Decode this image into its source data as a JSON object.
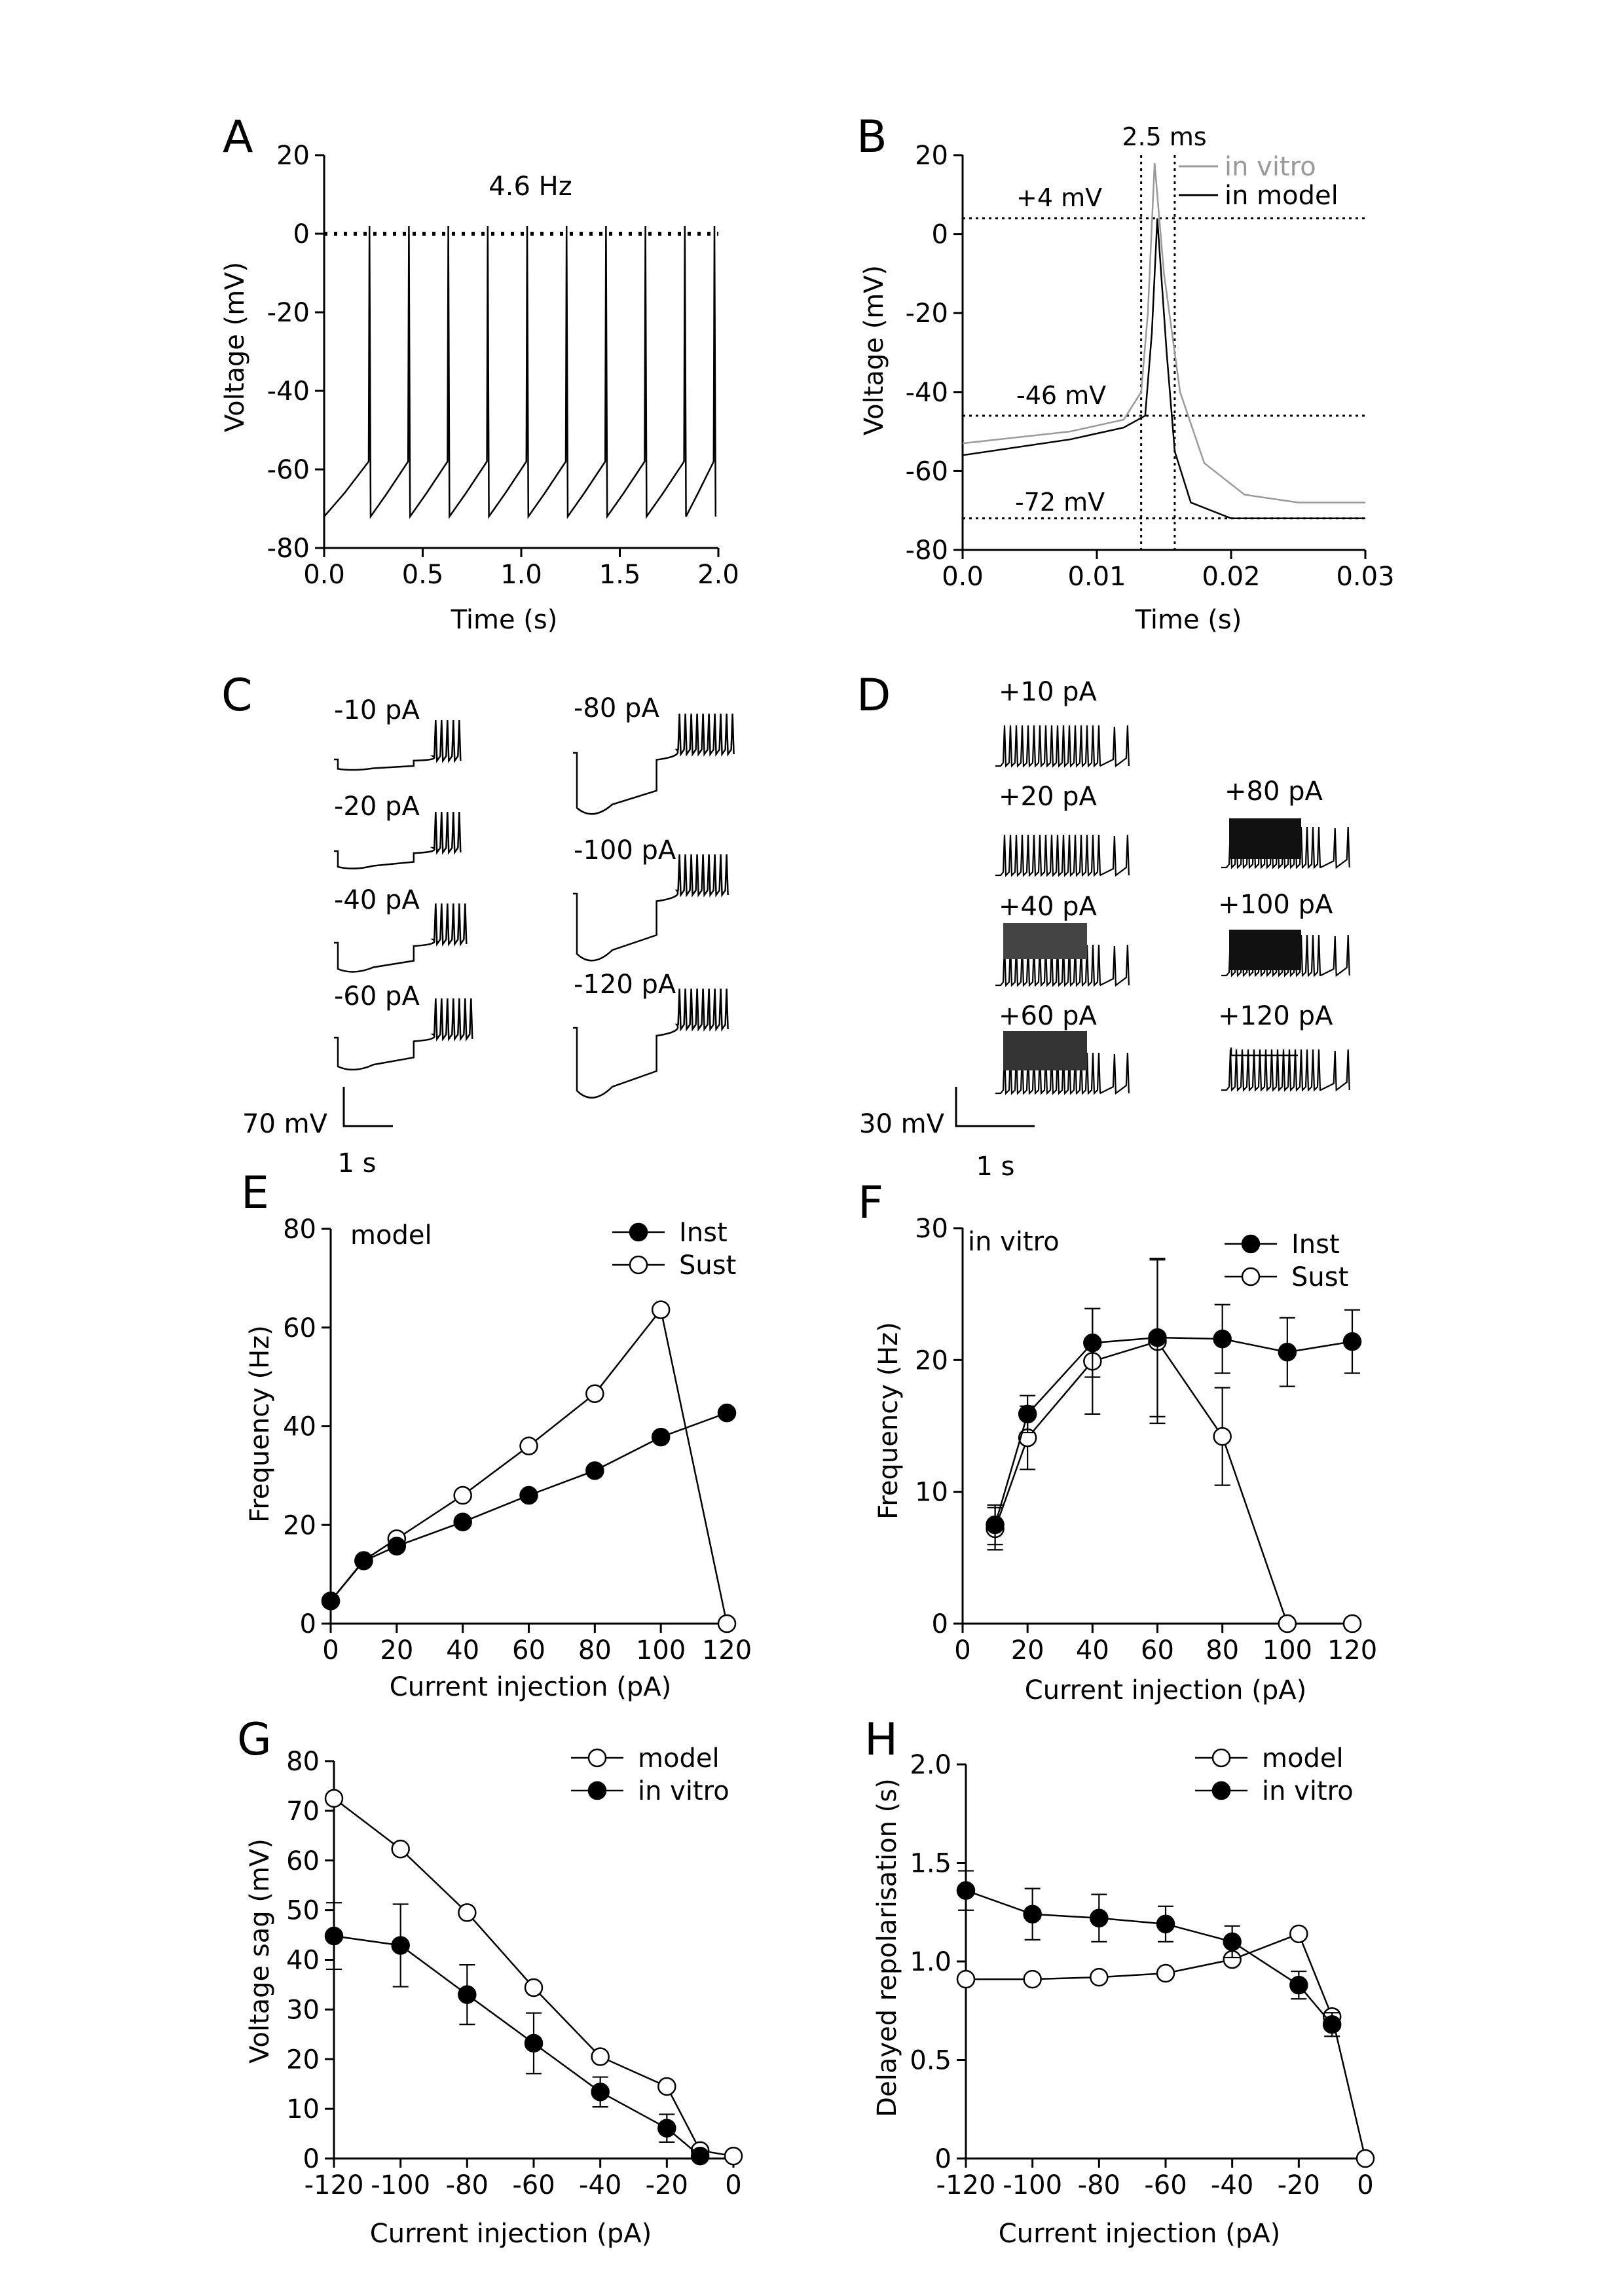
{
  "panels": {
    "A": {
      "letter": "A",
      "title": "4.6 Hz",
      "xlabel": "Time (s)",
      "ylabel": "Voltage (mV)",
      "xticks": [
        "0.0",
        "0.5",
        "1.0",
        "1.5",
        "2.0"
      ],
      "yticks": [
        "20",
        "0",
        "-20",
        "-40",
        "-60",
        "-80"
      ]
    },
    "B": {
      "letter": "B",
      "xlabel": "Time (s)",
      "ylabel": "Voltage (mV)",
      "xticks": [
        "0.0",
        "0.01",
        "0.02",
        "0.03"
      ],
      "yticks": [
        "20",
        "0",
        "-20",
        "-40",
        "-60",
        "-80"
      ],
      "annotations": {
        "width": "2.5 ms",
        "peak": "+4 mV",
        "threshold": "-46 mV",
        "ahp": "-72 mV"
      },
      "legend": [
        {
          "name": "in vitro",
          "color": "#9a9a9a"
        },
        {
          "name": "in model",
          "color": "#000000"
        }
      ]
    },
    "C": {
      "letter": "C",
      "traces": [
        "-10 pA",
        "-20 pA",
        "-40 pA",
        "-60 pA",
        "-80 pA",
        "-100 pA",
        "-120 pA"
      ],
      "scalebar": {
        "v": "70 mV",
        "t": "1 s"
      }
    },
    "D": {
      "letter": "D",
      "traces": [
        "+10 pA",
        "+20 pA",
        "+40 pA",
        "+60 pA",
        "+80 pA",
        "+100 pA",
        "+120 pA"
      ],
      "scalebar": {
        "v": "30 mV",
        "t": "1 s"
      }
    },
    "E": {
      "letter": "E",
      "note": "model",
      "xlabel": "Current injection (pA)",
      "ylabel": "Frequency (Hz)",
      "legend": [
        "Inst",
        "Sust"
      ]
    },
    "F": {
      "letter": "F",
      "note": "in vitro",
      "xlabel": "Current injection (pA)",
      "ylabel": "Frequency (Hz)",
      "legend": [
        "Inst",
        "Sust"
      ]
    },
    "G": {
      "letter": "G",
      "xlabel": "Current injection (pA)",
      "ylabel": "Voltage sag (mV)",
      "legend": [
        "model",
        "in vitro"
      ]
    },
    "H": {
      "letter": "H",
      "xlabel": "Current injection (pA)",
      "ylabel": "Delayed repolarisation (s)",
      "legend": [
        "model",
        "in vitro"
      ]
    }
  },
  "chart_data": [
    {
      "panel": "A",
      "type": "line",
      "xlim": [
        0,
        2.0
      ],
      "ylim": [
        -80,
        20
      ],
      "series": [
        {
          "spike_times": [
            0.23,
            0.43,
            0.63,
            0.83,
            1.03,
            1.23,
            1.43,
            1.63,
            1.83,
            1.98
          ],
          "spike_peak": 2,
          "rest": -72,
          "trough": -72,
          "reference_line": 0
        }
      ]
    },
    {
      "panel": "B",
      "type": "line",
      "xlim": [
        0,
        0.03
      ],
      "ylim": [
        -80,
        20
      ],
      "series": [
        {
          "name": "in vitro",
          "peak_time": 0.0143,
          "peak": 18,
          "threshold": -46,
          "after": -68
        },
        {
          "name": "in model",
          "peak_time": 0.0145,
          "peak": 4,
          "threshold": -46,
          "after": -72
        }
      ],
      "guides": {
        "h": [
          4,
          -46,
          -72
        ],
        "v": [
          0.0133,
          0.0158
        ]
      }
    },
    {
      "panel": "E",
      "type": "line",
      "xlim": [
        0,
        120
      ],
      "ylim": [
        0,
        80
      ],
      "xticks": [
        "0",
        "20",
        "40",
        "60",
        "80",
        "100",
        "120"
      ],
      "yticks": [
        "0",
        "20",
        "40",
        "60",
        "80"
      ],
      "series": [
        {
          "name": "Inst",
          "x": [
            0,
            10,
            20,
            40,
            60,
            80,
            100,
            120
          ],
          "y": [
            4.6,
            12.7,
            15.7,
            20.6,
            26,
            31,
            37.8,
            42.7
          ]
        },
        {
          "name": "Sust",
          "x": [
            0,
            10,
            20,
            40,
            60,
            80,
            100,
            120
          ],
          "y": [
            4.6,
            12.8,
            17.2,
            26,
            36,
            46.6,
            63.6,
            0
          ]
        }
      ]
    },
    {
      "panel": "F",
      "type": "line",
      "xlim": [
        0,
        120
      ],
      "ylim": [
        0,
        30
      ],
      "xticks": [
        "0",
        "20",
        "40",
        "60",
        "80",
        "100",
        "120"
      ],
      "yticks": [
        "0",
        "10",
        "20",
        "30"
      ],
      "series": [
        {
          "name": "Inst",
          "x": [
            10,
            20,
            40,
            60,
            80,
            100,
            120
          ],
          "y": [
            7.5,
            15.9,
            21.3,
            21.7,
            21.6,
            20.6,
            21.4
          ],
          "err": [
            1.5,
            1.4,
            2.6,
            6.0,
            2.6,
            2.6,
            2.4
          ]
        },
        {
          "name": "Sust",
          "x": [
            10,
            20,
            40,
            60,
            80,
            100,
            120
          ],
          "y": [
            7.2,
            14.1,
            19.9,
            21.4,
            14.2,
            0,
            0
          ],
          "err": [
            1.6,
            2.4,
            4.0,
            6.2,
            3.7,
            0,
            0
          ]
        }
      ]
    },
    {
      "panel": "G",
      "type": "line",
      "xlim": [
        -120,
        0
      ],
      "ylim": [
        0,
        80
      ],
      "xticks": [
        "-120",
        "-100",
        "-80",
        "-60",
        "-40",
        "-20",
        "0"
      ],
      "yticks": [
        "0",
        "10",
        "20",
        "30",
        "40",
        "50",
        "60",
        "70",
        "80"
      ],
      "series": [
        {
          "name": "model",
          "x": [
            -120,
            -100,
            -80,
            -60,
            -40,
            -20,
            -10,
            0
          ],
          "y": [
            72.5,
            62.3,
            49.5,
            34.4,
            20.5,
            14.5,
            1.6,
            0.5
          ]
        },
        {
          "name": "in vitro",
          "x": [
            -120,
            -100,
            -80,
            -60,
            -40,
            -20,
            -10
          ],
          "y": [
            44.8,
            42.9,
            33.0,
            23.2,
            13.4,
            6.1,
            0.5
          ],
          "err": [
            6.7,
            8.3,
            6.0,
            6.1,
            3.0,
            2.8,
            0.5
          ]
        }
      ]
    },
    {
      "panel": "H",
      "type": "line",
      "xlim": [
        -120,
        0
      ],
      "ylim": [
        0,
        2.0
      ],
      "xticks": [
        "-120",
        "-100",
        "-80",
        "-60",
        "-40",
        "-20",
        "0"
      ],
      "yticks": [
        "0",
        "0.5",
        "1.0",
        "1.5",
        "2.0"
      ],
      "series": [
        {
          "name": "model",
          "x": [
            -120,
            -100,
            -80,
            -60,
            -40,
            -20,
            -10,
            0
          ],
          "y": [
            0.91,
            0.91,
            0.92,
            0.94,
            1.01,
            1.14,
            0.72,
            0
          ]
        },
        {
          "name": "in vitro",
          "x": [
            -120,
            -100,
            -80,
            -60,
            -40,
            -20,
            -10
          ],
          "y": [
            1.36,
            1.24,
            1.22,
            1.19,
            1.1,
            0.88,
            0.68
          ],
          "err": [
            0.1,
            0.13,
            0.12,
            0.09,
            0.08,
            0.07,
            0.06
          ]
        }
      ]
    }
  ]
}
